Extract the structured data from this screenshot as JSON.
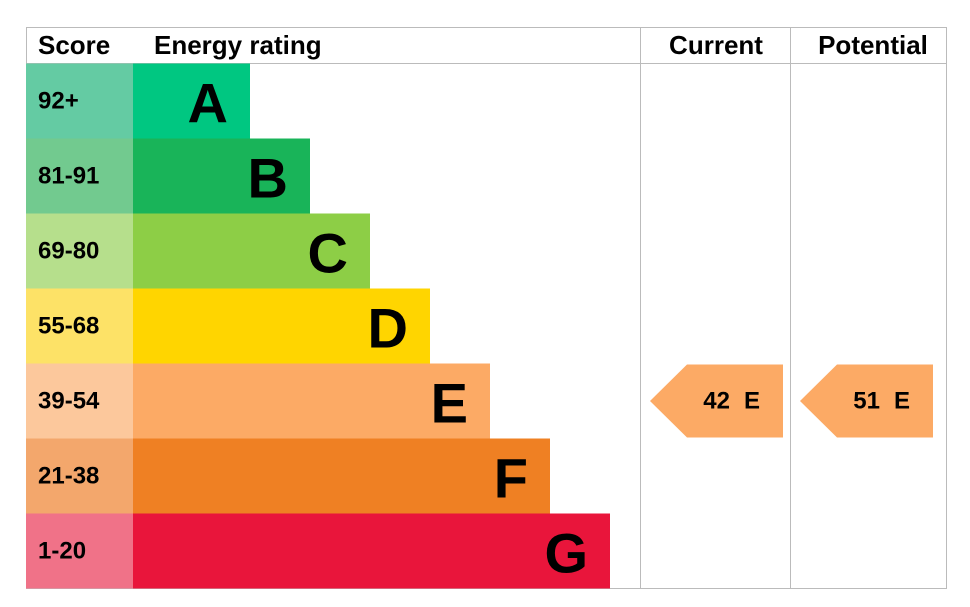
{
  "chart_data": {
    "type": "epc",
    "headers": [
      "Score",
      "Energy rating",
      "Current",
      "Potential"
    ],
    "bands": [
      {
        "score": "92+",
        "letter": "A",
        "color": "#00c781",
        "score_color": "#64cba3"
      },
      {
        "score": "81-91",
        "letter": "B",
        "color": "#19b459",
        "score_color": "#72ca8f"
      },
      {
        "score": "69-80",
        "letter": "C",
        "color": "#8dce46",
        "score_color": "#b6df8c"
      },
      {
        "score": "55-68",
        "letter": "D",
        "color": "#ffd500",
        "score_color": "#fde267"
      },
      {
        "score": "39-54",
        "letter": "E",
        "color": "#fcaa65",
        "score_color": "#fcc89c"
      },
      {
        "score": "21-38",
        "letter": "F",
        "color": "#ef8023",
        "score_color": "#f3a76c"
      },
      {
        "score": "1-20",
        "letter": "G",
        "color": "#e9153b",
        "score_color": "#f07288"
      }
    ],
    "current": {
      "value": 42,
      "rating": "E",
      "color": "#fcaa65"
    },
    "potential": {
      "value": 51,
      "rating": "E",
      "color": "#fcaa65"
    }
  }
}
